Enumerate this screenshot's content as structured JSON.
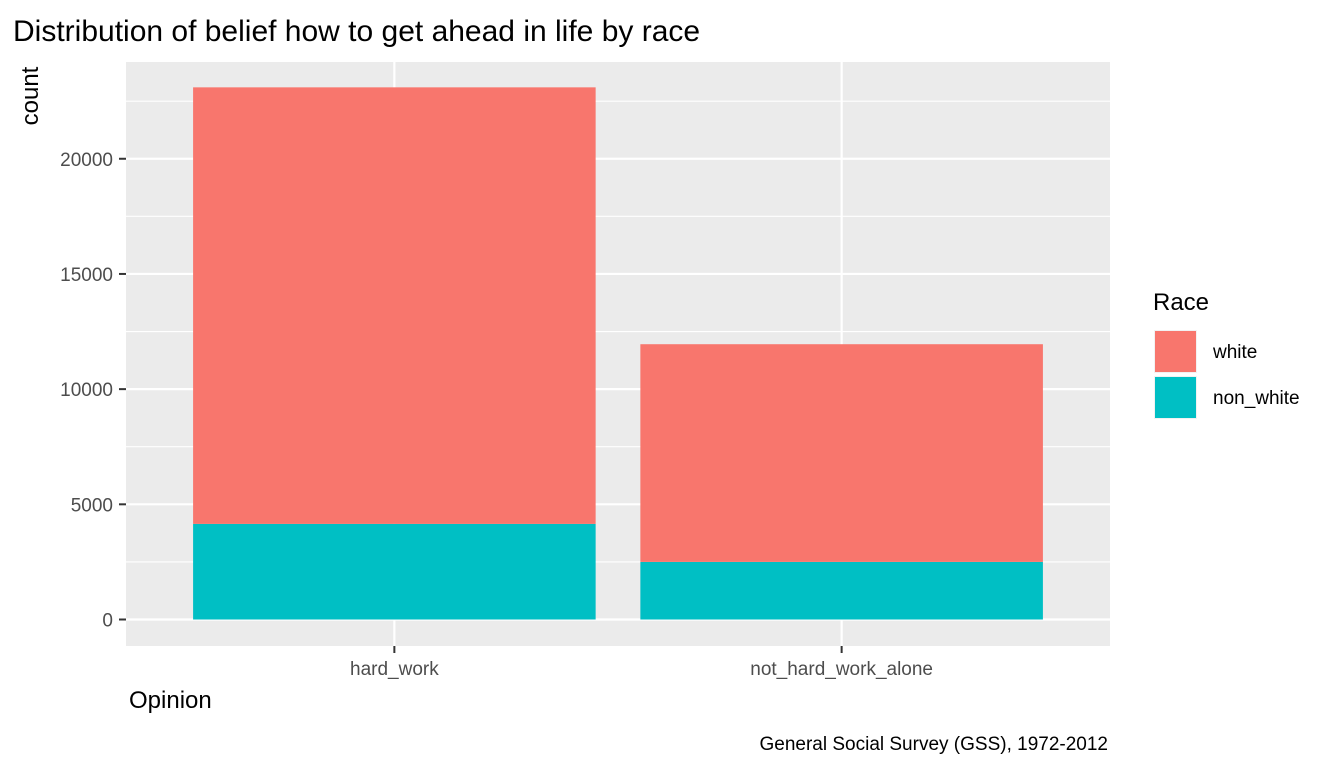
{
  "chart_data": {
    "type": "bar",
    "stacked": true,
    "title": "Distribution of belief how to get ahead in life by race",
    "xlabel": "Opinion",
    "ylabel": "count",
    "caption": "General Social Survey (GSS), 1972-2012",
    "categories": [
      "hard_work",
      "not_hard_work_alone"
    ],
    "series": [
      {
        "name": "white",
        "color": "#F8766D",
        "values": [
          18950,
          9450
        ]
      },
      {
        "name": "non_white",
        "color": "#00BFC4",
        "values": [
          4150,
          2500
        ]
      }
    ],
    "ylim": [
      -1150,
      24200
    ],
    "yticks": [
      0,
      5000,
      10000,
      15000,
      20000
    ],
    "ytick_labels": [
      "0",
      "5000",
      "10000",
      "15000",
      "20000"
    ],
    "legend": {
      "title": "Race",
      "position": "right"
    },
    "grid": true
  }
}
